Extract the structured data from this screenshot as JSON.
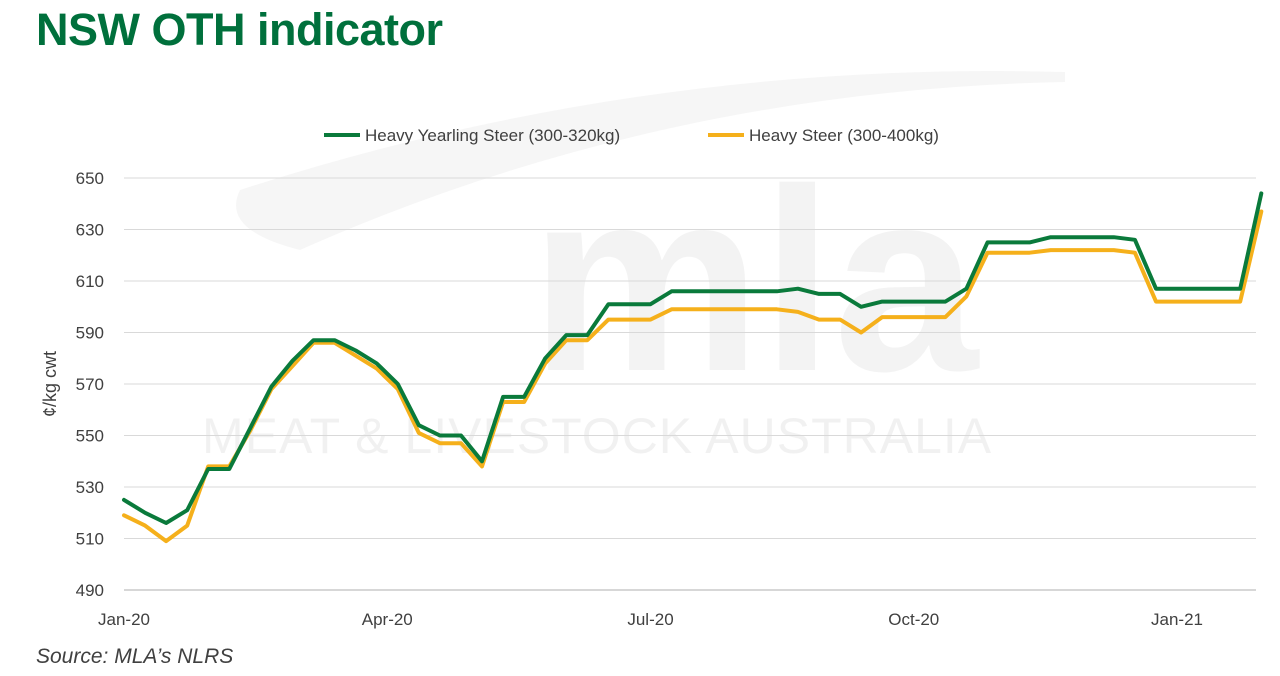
{
  "title": "NSW OTH indicator",
  "source": "Source: MLA’s NLRS",
  "colors": {
    "title": "#00703C",
    "yearling": "#0A7A3B",
    "steer": "#F5B01B",
    "grid": "#D9D9D9",
    "axis": "#BFBFBF"
  },
  "watermark": {
    "logo": "mla",
    "text": "MEAT & LIVESTOCK AUSTRALIA"
  },
  "chart_data": {
    "type": "line",
    "title": "",
    "ylabel": "¢/kg cwt",
    "xlabel": "",
    "ylim": [
      490,
      650
    ],
    "yticks": [
      490,
      510,
      530,
      550,
      570,
      590,
      610,
      630,
      650
    ],
    "xlim": [
      0,
      12.9
    ],
    "xtick_labels": [
      "Jan-20",
      "Apr-20",
      "Jul-20",
      "Oct-20",
      "Jan-21"
    ],
    "xtick_positions": [
      0,
      3,
      6,
      9,
      12
    ],
    "grid": true,
    "legend_position": "top",
    "series": [
      {
        "name": "Heavy Yearling Steer (300-320kg)",
        "color": "#0A7A3B",
        "points": [
          [
            0.0,
            525
          ],
          [
            0.24,
            520
          ],
          [
            0.48,
            516
          ],
          [
            0.72,
            521
          ],
          [
            0.96,
            537
          ],
          [
            1.2,
            537
          ],
          [
            1.44,
            553
          ],
          [
            1.68,
            569
          ],
          [
            1.92,
            579
          ],
          [
            2.16,
            587
          ],
          [
            2.4,
            587
          ],
          [
            2.64,
            583
          ],
          [
            2.88,
            578
          ],
          [
            3.12,
            570
          ],
          [
            3.36,
            554
          ],
          [
            3.6,
            550
          ],
          [
            3.84,
            550
          ],
          [
            4.08,
            540
          ],
          [
            4.32,
            565
          ],
          [
            4.56,
            565
          ],
          [
            4.8,
            580
          ],
          [
            5.04,
            589
          ],
          [
            5.28,
            589
          ],
          [
            5.52,
            601
          ],
          [
            5.76,
            601
          ],
          [
            6.0,
            601
          ],
          [
            6.24,
            606
          ],
          [
            6.48,
            606
          ],
          [
            6.72,
            606
          ],
          [
            6.96,
            606
          ],
          [
            7.2,
            606
          ],
          [
            7.44,
            606
          ],
          [
            7.68,
            607
          ],
          [
            7.92,
            605
          ],
          [
            8.16,
            605
          ],
          [
            8.4,
            600
          ],
          [
            8.64,
            602
          ],
          [
            8.88,
            602
          ],
          [
            9.12,
            602
          ],
          [
            9.36,
            602
          ],
          [
            9.6,
            607
          ],
          [
            9.84,
            625
          ],
          [
            10.08,
            625
          ],
          [
            10.32,
            625
          ],
          [
            10.56,
            627
          ],
          [
            10.8,
            627
          ],
          [
            11.04,
            627
          ],
          [
            11.28,
            627
          ],
          [
            11.52,
            626
          ],
          [
            11.76,
            607
          ],
          [
            12.0,
            607
          ],
          [
            12.24,
            607
          ],
          [
            12.48,
            607
          ],
          [
            12.72,
            607
          ],
          [
            12.96,
            644
          ]
        ]
      },
      {
        "name": "Heavy Steer (300-400kg)",
        "color": "#F5B01B",
        "points": [
          [
            0.0,
            519
          ],
          [
            0.24,
            515
          ],
          [
            0.48,
            509
          ],
          [
            0.72,
            515
          ],
          [
            0.96,
            538
          ],
          [
            1.2,
            538
          ],
          [
            1.44,
            552
          ],
          [
            1.68,
            568
          ],
          [
            1.92,
            577
          ],
          [
            2.16,
            586
          ],
          [
            2.4,
            586
          ],
          [
            2.64,
            581
          ],
          [
            2.88,
            576
          ],
          [
            3.12,
            568
          ],
          [
            3.36,
            551
          ],
          [
            3.6,
            547
          ],
          [
            3.84,
            547
          ],
          [
            4.08,
            538
          ],
          [
            4.32,
            563
          ],
          [
            4.56,
            563
          ],
          [
            4.8,
            578
          ],
          [
            5.04,
            587
          ],
          [
            5.28,
            587
          ],
          [
            5.52,
            595
          ],
          [
            5.76,
            595
          ],
          [
            6.0,
            595
          ],
          [
            6.24,
            599
          ],
          [
            6.48,
            599
          ],
          [
            6.72,
            599
          ],
          [
            6.96,
            599
          ],
          [
            7.2,
            599
          ],
          [
            7.44,
            599
          ],
          [
            7.68,
            598
          ],
          [
            7.92,
            595
          ],
          [
            8.16,
            595
          ],
          [
            8.4,
            590
          ],
          [
            8.64,
            596
          ],
          [
            8.88,
            596
          ],
          [
            9.12,
            596
          ],
          [
            9.36,
            596
          ],
          [
            9.6,
            604
          ],
          [
            9.84,
            621
          ],
          [
            10.08,
            621
          ],
          [
            10.32,
            621
          ],
          [
            10.56,
            622
          ],
          [
            10.8,
            622
          ],
          [
            11.04,
            622
          ],
          [
            11.28,
            622
          ],
          [
            11.52,
            621
          ],
          [
            11.76,
            602
          ],
          [
            12.0,
            602
          ],
          [
            12.24,
            602
          ],
          [
            12.48,
            602
          ],
          [
            12.72,
            602
          ],
          [
            12.96,
            637
          ]
        ]
      }
    ]
  }
}
